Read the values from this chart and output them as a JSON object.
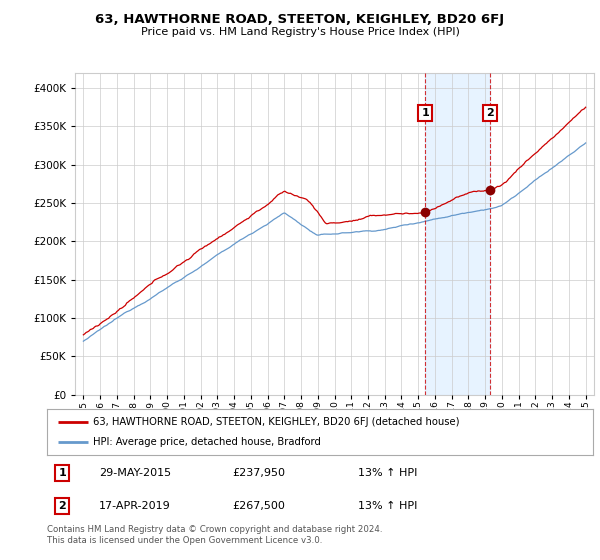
{
  "title": "63, HAWTHORNE ROAD, STEETON, KEIGHLEY, BD20 6FJ",
  "subtitle": "Price paid vs. HM Land Registry's House Price Index (HPI)",
  "legend_label_red": "63, HAWTHORNE ROAD, STEETON, KEIGHLEY, BD20 6FJ (detached house)",
  "legend_label_blue": "HPI: Average price, detached house, Bradford",
  "footnote": "Contains HM Land Registry data © Crown copyright and database right 2024.\nThis data is licensed under the Open Government Licence v3.0.",
  "transaction1_label": "29-MAY-2015",
  "transaction1_price": "£237,950",
  "transaction1_pct": "13% ↑ HPI",
  "transaction2_label": "17-APR-2019",
  "transaction2_price": "£267,500",
  "transaction2_pct": "13% ↑ HPI",
  "red_color": "#cc0000",
  "blue_color": "#6699cc",
  "vline_color": "#cc0000",
  "shade_color": "#ddeeff",
  "marker1_x": 2015.42,
  "marker1_y": 237950,
  "marker2_x": 2019.29,
  "marker2_y": 267500,
  "ylim_min": 0,
  "ylim_max": 420000,
  "xlim_min": 1994.5,
  "xlim_max": 2025.5,
  "background_color": "#ffffff",
  "plot_bg_color": "#ffffff",
  "yticks": [
    0,
    50000,
    100000,
    150000,
    200000,
    250000,
    300000,
    350000,
    400000
  ]
}
